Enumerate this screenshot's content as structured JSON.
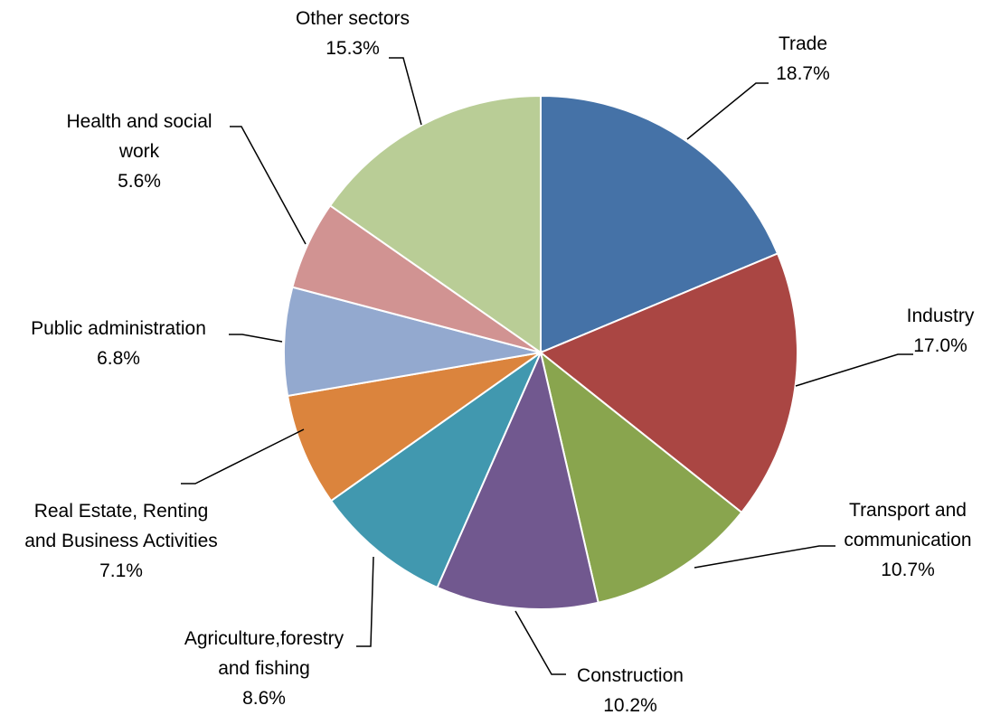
{
  "chart_data": {
    "type": "pie",
    "title": "",
    "legend": "none",
    "slices": [
      {
        "label": [
          "Trade"
        ],
        "value": 18.7,
        "value_label": "18.7%",
        "color": "#4572A7"
      },
      {
        "label": [
          "Industry"
        ],
        "value": 17.0,
        "value_label": "17.0%",
        "color": "#AA4643"
      },
      {
        "label": [
          "Transport and",
          "communication"
        ],
        "value": 10.7,
        "value_label": "10.7%",
        "color": "#89A54E"
      },
      {
        "label": [
          "Construction"
        ],
        "value": 10.2,
        "value_label": "10.2%",
        "color": "#71588F"
      },
      {
        "label": [
          "Agriculture,forestry",
          "and fishing"
        ],
        "value": 8.6,
        "value_label": "8.6%",
        "color": "#4198AF"
      },
      {
        "label": [
          "Real Estate, Renting",
          "and Business Activities"
        ],
        "value": 7.1,
        "value_label": "7.1%",
        "color": "#DB843D"
      },
      {
        "label": [
          "Public administration"
        ],
        "value": 6.8,
        "value_label": "6.8%",
        "color": "#93A9CF"
      },
      {
        "label": [
          "Health and social",
          "work"
        ],
        "value": 5.6,
        "value_label": "5.6%",
        "color": "#D19392"
      },
      {
        "label": [
          "Other sectors"
        ],
        "value": 15.3,
        "value_label": "15.3%",
        "color": "#B9CD96"
      }
    ]
  }
}
